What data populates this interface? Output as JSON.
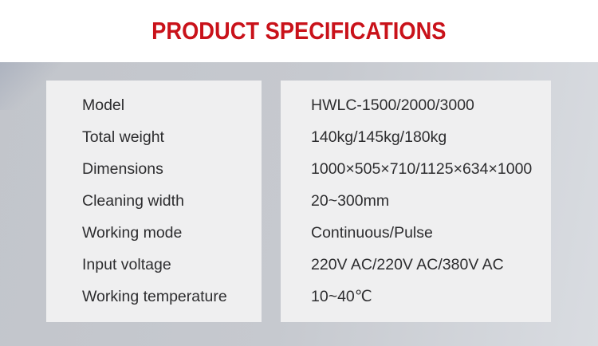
{
  "header": {
    "title": "PRODUCT SPECIFICATIONS"
  },
  "colors": {
    "accent_red": "#c9121a",
    "background_left": "#c2c5cb",
    "background_right": "#d9dce1",
    "panel_gray": "#efeff0",
    "text_dark": "#2d2d2f"
  },
  "spec_table": {
    "rows": [
      {
        "label": "Model",
        "value": "HWLC-1500/2000/3000"
      },
      {
        "label": "Total weight",
        "value": "140kg/145kg/180kg"
      },
      {
        "label": "Dimensions",
        "value": "1000×505×710/1125×634×1000"
      },
      {
        "label": "Cleaning width",
        "value": "20~300mm"
      },
      {
        "label": "Working mode",
        "value": "Continuous/Pulse"
      },
      {
        "label": "Input voltage",
        "value": "220V AC/220V AC/380V AC"
      },
      {
        "label": "Working temperature",
        "value": "10~40℃"
      }
    ]
  }
}
